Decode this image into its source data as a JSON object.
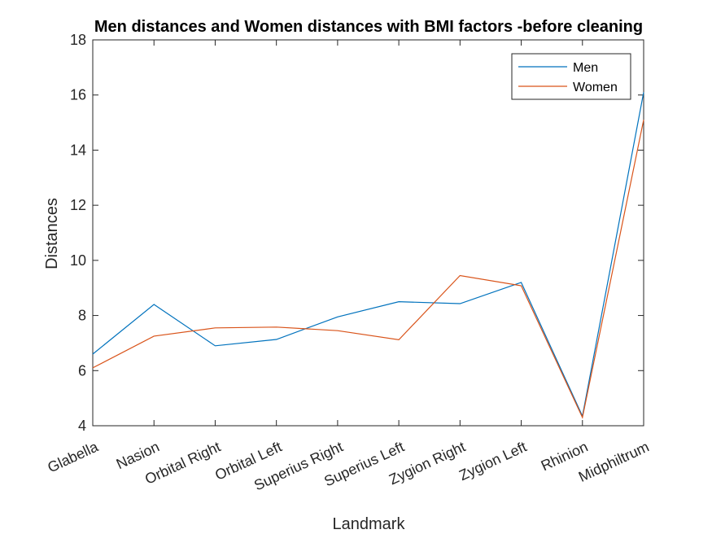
{
  "chart_data": {
    "type": "line",
    "title": "Men distances and Women distances with BMI factors -before cleaning",
    "xlabel": "Landmark",
    "ylabel": "Distances",
    "categories": [
      "Glabella",
      "Nasion",
      "Orbital Right",
      "Orbital Left",
      "Superius Right",
      "Superius Left",
      "Zygion Right",
      "Zygion Left",
      "Rhinion",
      "Midphiltrum"
    ],
    "series": [
      {
        "name": "Men",
        "color": "#0072BD",
        "values": [
          6.6,
          8.4,
          6.9,
          7.13,
          7.95,
          8.5,
          8.43,
          9.2,
          4.35,
          16.1
        ]
      },
      {
        "name": "Women",
        "color": "#D95319",
        "values": [
          6.1,
          7.25,
          7.55,
          7.58,
          7.45,
          7.12,
          9.45,
          9.08,
          4.3,
          15.1
        ]
      }
    ],
    "ylim": [
      4,
      18
    ],
    "yticks": [
      4,
      6,
      8,
      10,
      12,
      14,
      16,
      18
    ],
    "grid": false,
    "legend_position": "top-right"
  }
}
